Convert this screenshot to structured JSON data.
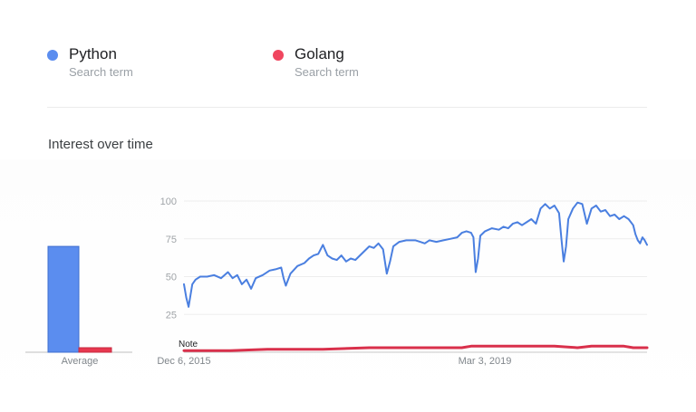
{
  "terms": [
    {
      "name": "Python",
      "subtitle": "Search term",
      "color": "#5b8def"
    },
    {
      "name": "Golang",
      "subtitle": "Search term",
      "color": "#f0465f"
    }
  ],
  "section_title": "Interest over time",
  "chart_data": [
    {
      "type": "bar",
      "categories": [
        "Average"
      ],
      "series": [
        {
          "name": "Python",
          "values": [
            70
          ],
          "color": "#5b8def"
        },
        {
          "name": "Golang",
          "values": [
            3
          ],
          "color": "#e8384f"
        }
      ],
      "ylim": [
        0,
        100
      ],
      "xlabel": "",
      "ylabel": ""
    },
    {
      "type": "line",
      "ylim": [
        0,
        100
      ],
      "yticks": [
        25,
        50,
        75,
        100
      ],
      "grid": true,
      "xtick_labels": [
        "Dec 6, 2015",
        "Mar 3, 2019"
      ],
      "xlabel": "",
      "ylabel": "",
      "note_label": "Note",
      "series": [
        {
          "name": "Python",
          "color": "#4a7fe0",
          "points": [
            [
              0,
              45
            ],
            [
              0.005,
              36
            ],
            [
              0.01,
              30
            ],
            [
              0.018,
              45
            ],
            [
              0.025,
              48
            ],
            [
              0.035,
              50
            ],
            [
              0.05,
              50
            ],
            [
              0.065,
              51
            ],
            [
              0.08,
              49
            ],
            [
              0.095,
              53
            ],
            [
              0.105,
              49
            ],
            [
              0.115,
              51
            ],
            [
              0.125,
              45
            ],
            [
              0.135,
              48
            ],
            [
              0.145,
              42
            ],
            [
              0.155,
              49
            ],
            [
              0.17,
              51
            ],
            [
              0.185,
              54
            ],
            [
              0.2,
              55
            ],
            [
              0.21,
              56
            ],
            [
              0.215,
              49
            ],
            [
              0.22,
              44
            ],
            [
              0.23,
              52
            ],
            [
              0.245,
              57
            ],
            [
              0.26,
              59
            ],
            [
              0.27,
              62
            ],
            [
              0.28,
              64
            ],
            [
              0.29,
              65
            ],
            [
              0.3,
              71
            ],
            [
              0.31,
              64
            ],
            [
              0.32,
              62
            ],
            [
              0.33,
              61
            ],
            [
              0.34,
              64
            ],
            [
              0.35,
              60
            ],
            [
              0.36,
              62
            ],
            [
              0.37,
              61
            ],
            [
              0.38,
              64
            ],
            [
              0.39,
              67
            ],
            [
              0.4,
              70
            ],
            [
              0.41,
              69
            ],
            [
              0.42,
              72
            ],
            [
              0.43,
              68
            ],
            [
              0.438,
              52
            ],
            [
              0.445,
              60
            ],
            [
              0.452,
              70
            ],
            [
              0.465,
              73
            ],
            [
              0.48,
              74
            ],
            [
              0.5,
              74
            ],
            [
              0.51,
              73
            ],
            [
              0.52,
              72
            ],
            [
              0.53,
              74
            ],
            [
              0.545,
              73
            ],
            [
              0.56,
              74
            ],
            [
              0.575,
              75
            ],
            [
              0.59,
              76
            ],
            [
              0.6,
              79
            ],
            [
              0.61,
              80
            ],
            [
              0.62,
              79
            ],
            [
              0.625,
              76
            ],
            [
              0.63,
              53
            ],
            [
              0.635,
              62
            ],
            [
              0.64,
              77
            ],
            [
              0.65,
              80
            ],
            [
              0.665,
              82
            ],
            [
              0.68,
              81
            ],
            [
              0.69,
              83
            ],
            [
              0.7,
              82
            ],
            [
              0.71,
              85
            ],
            [
              0.72,
              86
            ],
            [
              0.73,
              84
            ],
            [
              0.74,
              86
            ],
            [
              0.75,
              88
            ],
            [
              0.76,
              85
            ],
            [
              0.77,
              95
            ],
            [
              0.78,
              98
            ],
            [
              0.79,
              95
            ],
            [
              0.8,
              97
            ],
            [
              0.81,
              92
            ],
            [
              0.815,
              75
            ],
            [
              0.82,
              60
            ],
            [
              0.825,
              70
            ],
            [
              0.83,
              88
            ],
            [
              0.84,
              95
            ],
            [
              0.85,
              99
            ],
            [
              0.86,
              98
            ],
            [
              0.87,
              85
            ],
            [
              0.88,
              95
            ],
            [
              0.89,
              97
            ],
            [
              0.9,
              93
            ],
            [
              0.91,
              94
            ],
            [
              0.92,
              90
            ],
            [
              0.93,
              91
            ],
            [
              0.94,
              88
            ],
            [
              0.95,
              90
            ],
            [
              0.96,
              88
            ],
            [
              0.97,
              84
            ],
            [
              0.975,
              78
            ],
            [
              0.98,
              74
            ],
            [
              0.985,
              72
            ],
            [
              0.99,
              76
            ],
            [
              0.995,
              74
            ],
            [
              1.0,
              71
            ]
          ]
        },
        {
          "name": "Golang",
          "color": "#d9304b",
          "points": [
            [
              0,
              1
            ],
            [
              0.1,
              1
            ],
            [
              0.18,
              2
            ],
            [
              0.2,
              2
            ],
            [
              0.3,
              2
            ],
            [
              0.4,
              3
            ],
            [
              0.5,
              3
            ],
            [
              0.6,
              3
            ],
            [
              0.62,
              4
            ],
            [
              0.7,
              4
            ],
            [
              0.8,
              4
            ],
            [
              0.85,
              3
            ],
            [
              0.88,
              4
            ],
            [
              0.95,
              4
            ],
            [
              0.97,
              3
            ],
            [
              1.0,
              3
            ]
          ]
        }
      ]
    }
  ]
}
